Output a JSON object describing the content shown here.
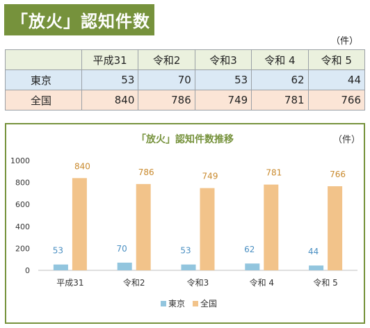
{
  "header": {
    "title": "「放火」認知件数"
  },
  "table": {
    "unit": "（件）",
    "columns": [
      "平成31",
      "令和2",
      "令和3",
      "令和 4",
      "令和 5"
    ],
    "rows": [
      {
        "label": "東京",
        "values": [
          53,
          70,
          53,
          62,
          44
        ]
      },
      {
        "label": "全国",
        "values": [
          840,
          786,
          749,
          781,
          766
        ]
      }
    ]
  },
  "chart_data": {
    "type": "bar",
    "title": "「放火」認知件数推移",
    "unit": "（件）",
    "categories": [
      "平成31",
      "令和2",
      "令和3",
      "令和 4",
      "令和 5"
    ],
    "series": [
      {
        "name": "東京",
        "values": [
          53,
          70,
          53,
          62,
          44
        ]
      },
      {
        "name": "全国",
        "values": [
          840,
          786,
          749,
          781,
          766
        ]
      }
    ],
    "ylim": [
      0,
      1000
    ],
    "yticks": [
      0,
      200,
      400,
      600,
      800,
      1000
    ],
    "grid": false,
    "legend": "bottom",
    "colors": {
      "東京": "#92c5de",
      "全国": "#f2c38a",
      "tokyo_label": "#4a8fc2",
      "zenkoku_label": "#c98a2e",
      "title": "#76923c"
    }
  }
}
